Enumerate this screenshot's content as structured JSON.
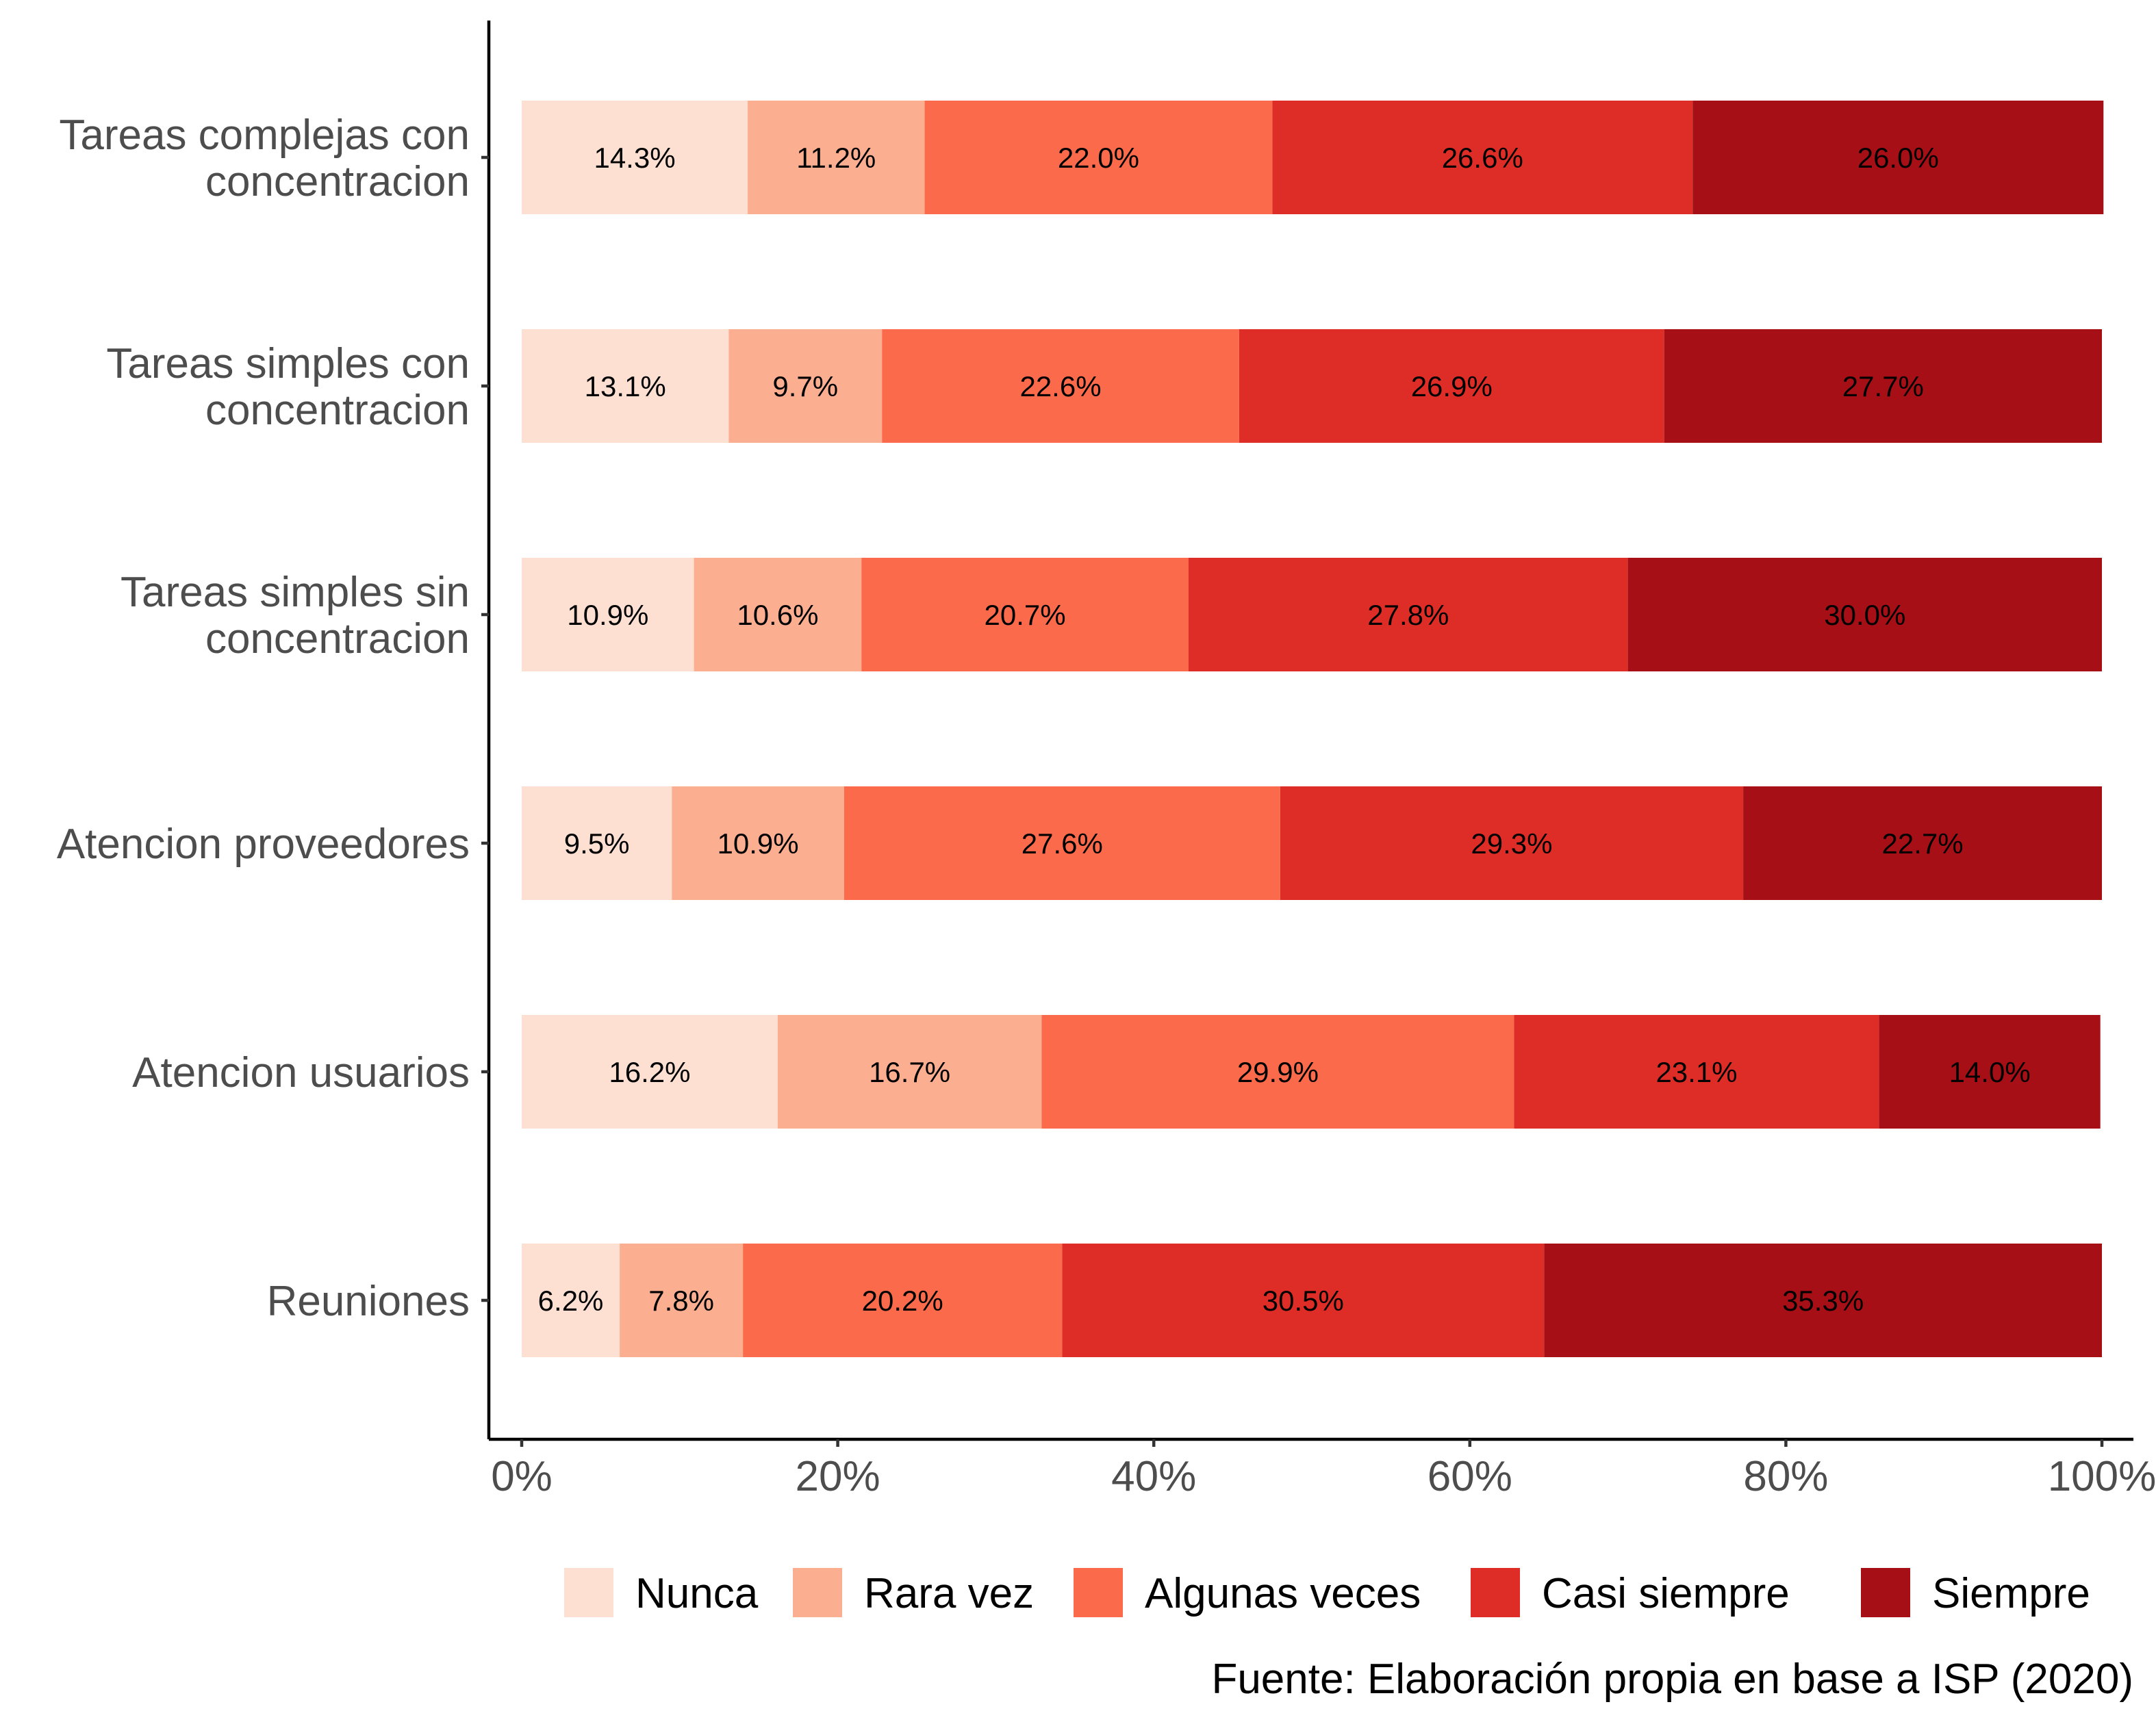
{
  "chart_data": {
    "type": "bar",
    "orientation": "horizontal",
    "stacked": true,
    "percent": true,
    "categories": [
      [
        "Tareas complejas con",
        "concentracion"
      ],
      [
        "Tareas simples con",
        "concentracion"
      ],
      [
        "Tareas simples sin",
        "concentracion"
      ],
      [
        "Atencion proveedores"
      ],
      [
        "Atencion usuarios"
      ],
      [
        "Reuniones"
      ]
    ],
    "series": [
      {
        "name": "Nunca",
        "color": "#FEE0D2",
        "values": [
          14.3,
          13.1,
          10.9,
          9.5,
          16.2,
          6.2
        ],
        "labels": [
          "14.3%",
          "13.1%",
          "10.9%",
          "9.5%",
          "16.2%",
          "6.2%"
        ]
      },
      {
        "name": "Rara vez",
        "color": "#FCAE91",
        "values": [
          11.2,
          9.7,
          10.6,
          10.9,
          16.7,
          7.8
        ],
        "labels": [
          "11.2%",
          "9.7%",
          "10.6%",
          "10.9%",
          "16.7%",
          "7.8%"
        ]
      },
      {
        "name": "Algunas veces",
        "color": "#FB6A4A",
        "values": [
          22.0,
          22.6,
          20.7,
          27.6,
          29.9,
          20.2
        ],
        "labels": [
          "22.0%",
          "22.6%",
          "20.7%",
          "27.6%",
          "29.9%",
          "20.2%"
        ]
      },
      {
        "name": "Casi siempre",
        "color": "#DE2D26",
        "values": [
          26.6,
          26.9,
          27.8,
          29.3,
          23.1,
          30.5
        ],
        "labels": [
          "26.6%",
          "26.9%",
          "27.8%",
          "29.3%",
          "23.1%",
          "30.5%"
        ]
      },
      {
        "name": "Siempre",
        "color": "#A50F15",
        "values": [
          26.0,
          27.7,
          30.0,
          22.7,
          14.0,
          35.3
        ],
        "labels": [
          "26.0%",
          "27.7%",
          "30.0%",
          "22.7%",
          "14.0%",
          "35.3%"
        ]
      }
    ],
    "xlim": [
      0,
      100
    ],
    "xticks": [
      0,
      20,
      40,
      60,
      80,
      100
    ],
    "xtick_labels": [
      "0%",
      "20%",
      "40%",
      "60%",
      "80%",
      "100%"
    ],
    "xlabel": "",
    "ylabel": "",
    "title": "",
    "grid": false,
    "legend_position": "bottom"
  },
  "caption": "Fuente: Elaboración propia en base a ISP (2020)"
}
